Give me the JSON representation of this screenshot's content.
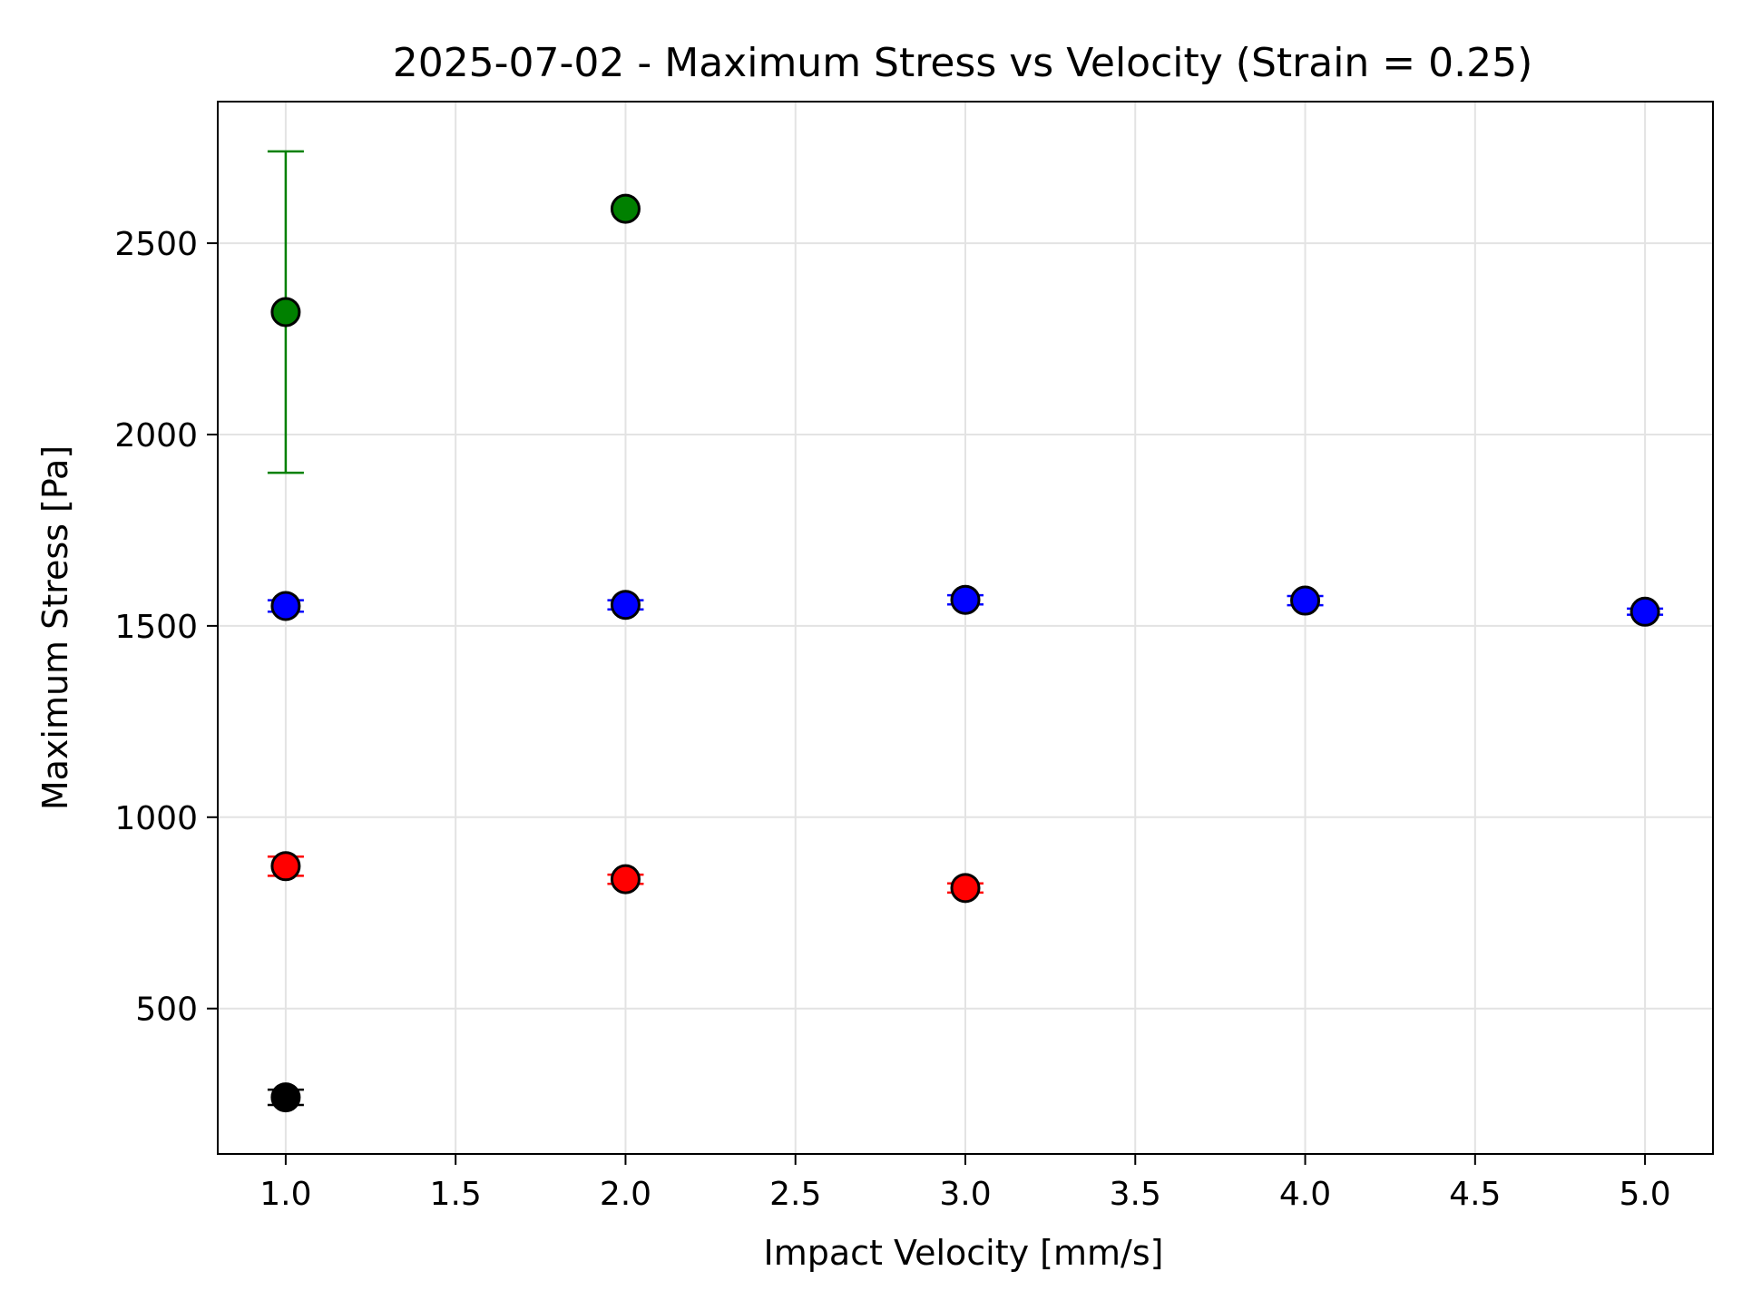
{
  "chart_data": {
    "type": "scatter",
    "title": "2025-07-02 - Maximum Stress vs Velocity (Strain = 0.25)",
    "xlabel": "Impact Velocity [mm/s]",
    "ylabel": "Maximum Stress [Pa]",
    "xlim": [
      0.8,
      5.2
    ],
    "ylim": [
      120,
      2870
    ],
    "xticks": [
      1.0,
      1.5,
      2.0,
      2.5,
      3.0,
      3.5,
      4.0,
      4.5,
      5.0
    ],
    "xtick_labels": [
      "1.0",
      "1.5",
      "2.0",
      "2.5",
      "3.0",
      "3.5",
      "4.0",
      "4.5",
      "5.0"
    ],
    "yticks": [
      500,
      1000,
      1500,
      2000,
      2500
    ],
    "ytick_labels": [
      "500",
      "1000",
      "1500",
      "2000",
      "2500"
    ],
    "grid": true,
    "series": [
      {
        "color": "#008000",
        "points": [
          {
            "x": 1.0,
            "y": 2320,
            "err": 420
          },
          {
            "x": 2.0,
            "y": 2590,
            "err": 0
          }
        ]
      },
      {
        "color": "#0000ff",
        "points": [
          {
            "x": 1.0,
            "y": 1552,
            "err": 15
          },
          {
            "x": 2.0,
            "y": 1555,
            "err": 12
          },
          {
            "x": 3.0,
            "y": 1568,
            "err": 12
          },
          {
            "x": 4.0,
            "y": 1566,
            "err": 12
          },
          {
            "x": 5.0,
            "y": 1537,
            "err": 8
          }
        ]
      },
      {
        "color": "#ff0000",
        "points": [
          {
            "x": 1.0,
            "y": 872,
            "err": 25
          },
          {
            "x": 2.0,
            "y": 838,
            "err": 12
          },
          {
            "x": 3.0,
            "y": 815,
            "err": 12
          }
        ]
      },
      {
        "color": "#000000",
        "points": [
          {
            "x": 1.0,
            "y": 268,
            "err": 20
          }
        ]
      }
    ]
  }
}
